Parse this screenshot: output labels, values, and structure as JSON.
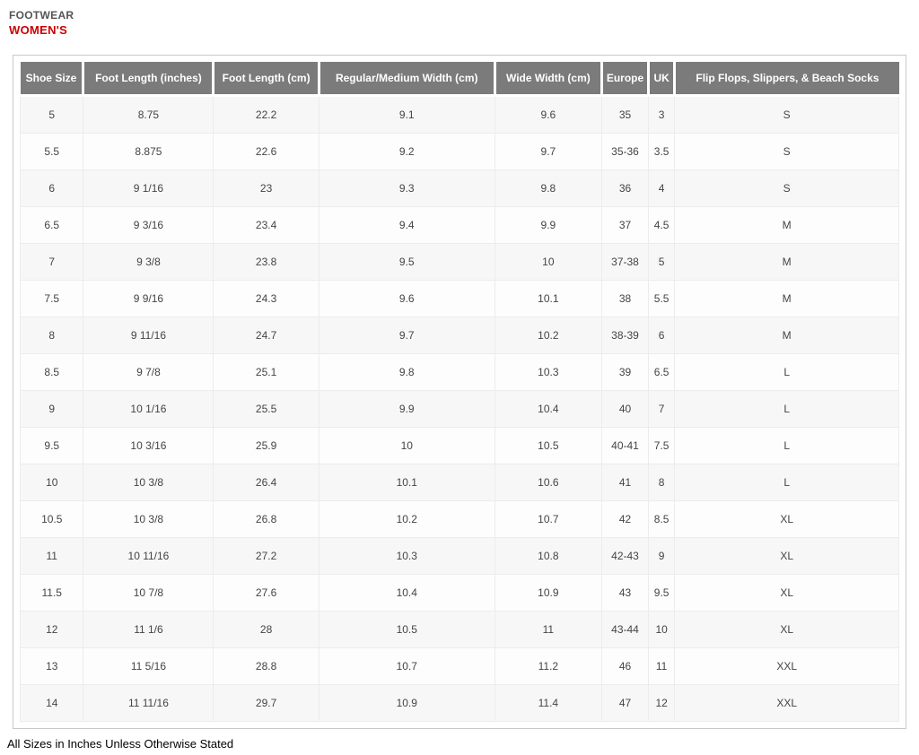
{
  "header": {
    "category": "FOOTWEAR",
    "subcategory": "WOMEN'S"
  },
  "table": {
    "columns": [
      "Shoe Size",
      "Foot Length (inches)",
      "Foot Length (cm)",
      "Regular/Medium Width (cm)",
      "Wide Width (cm)",
      "Europe",
      "UK",
      "Flip Flops, Slippers, & Beach Socks"
    ],
    "rows": [
      [
        "5",
        "8.75",
        "22.2",
        "9.1",
        "9.6",
        "35",
        "3",
        "S"
      ],
      [
        "5.5",
        "8.875",
        "22.6",
        "9.2",
        "9.7",
        "35-36",
        "3.5",
        "S"
      ],
      [
        "6",
        "9 1/16",
        "23",
        "9.3",
        "9.8",
        "36",
        "4",
        "S"
      ],
      [
        "6.5",
        "9 3/16",
        "23.4",
        "9.4",
        "9.9",
        "37",
        "4.5",
        "M"
      ],
      [
        "7",
        "9 3/8",
        "23.8",
        "9.5",
        "10",
        "37-38",
        "5",
        "M"
      ],
      [
        "7.5",
        "9 9/16",
        "24.3",
        "9.6",
        "10.1",
        "38",
        "5.5",
        "M"
      ],
      [
        "8",
        "9 11/16",
        "24.7",
        "9.7",
        "10.2",
        "38-39",
        "6",
        "M"
      ],
      [
        "8.5",
        "9 7/8",
        "25.1",
        "9.8",
        "10.3",
        "39",
        "6.5",
        "L"
      ],
      [
        "9",
        "10 1/16",
        "25.5",
        "9.9",
        "10.4",
        "40",
        "7",
        "L"
      ],
      [
        "9.5",
        "10 3/16",
        "25.9",
        "10",
        "10.5",
        "40-41",
        "7.5",
        "L"
      ],
      [
        "10",
        "10 3/8",
        "26.4",
        "10.1",
        "10.6",
        "41",
        "8",
        "L"
      ],
      [
        "10.5",
        "10 3/8",
        "26.8",
        "10.2",
        "10.7",
        "42",
        "8.5",
        "XL"
      ],
      [
        "11",
        "10 11/16",
        "27.2",
        "10.3",
        "10.8",
        "42-43",
        "9",
        "XL"
      ],
      [
        "11.5",
        "10 7/8",
        "27.6",
        "10.4",
        "10.9",
        "43",
        "9.5",
        "XL"
      ],
      [
        "12",
        "11 1/6",
        "28",
        "10.5",
        "11",
        "43-44",
        "10",
        "XL"
      ],
      [
        "13",
        "11 5/16",
        "28.8",
        "10.7",
        "11.2",
        "46",
        "11",
        "XXL"
      ],
      [
        "14",
        "11 11/16",
        "29.7",
        "10.9",
        "11.4",
        "47",
        "12",
        "XXL"
      ]
    ]
  },
  "footer": {
    "note": "All Sizes in Inches Unless Otherwise Stated"
  },
  "colors": {
    "accent_red": "#cc0000",
    "header_bg": "#7b7b7b",
    "header_text": "#ffffff"
  }
}
